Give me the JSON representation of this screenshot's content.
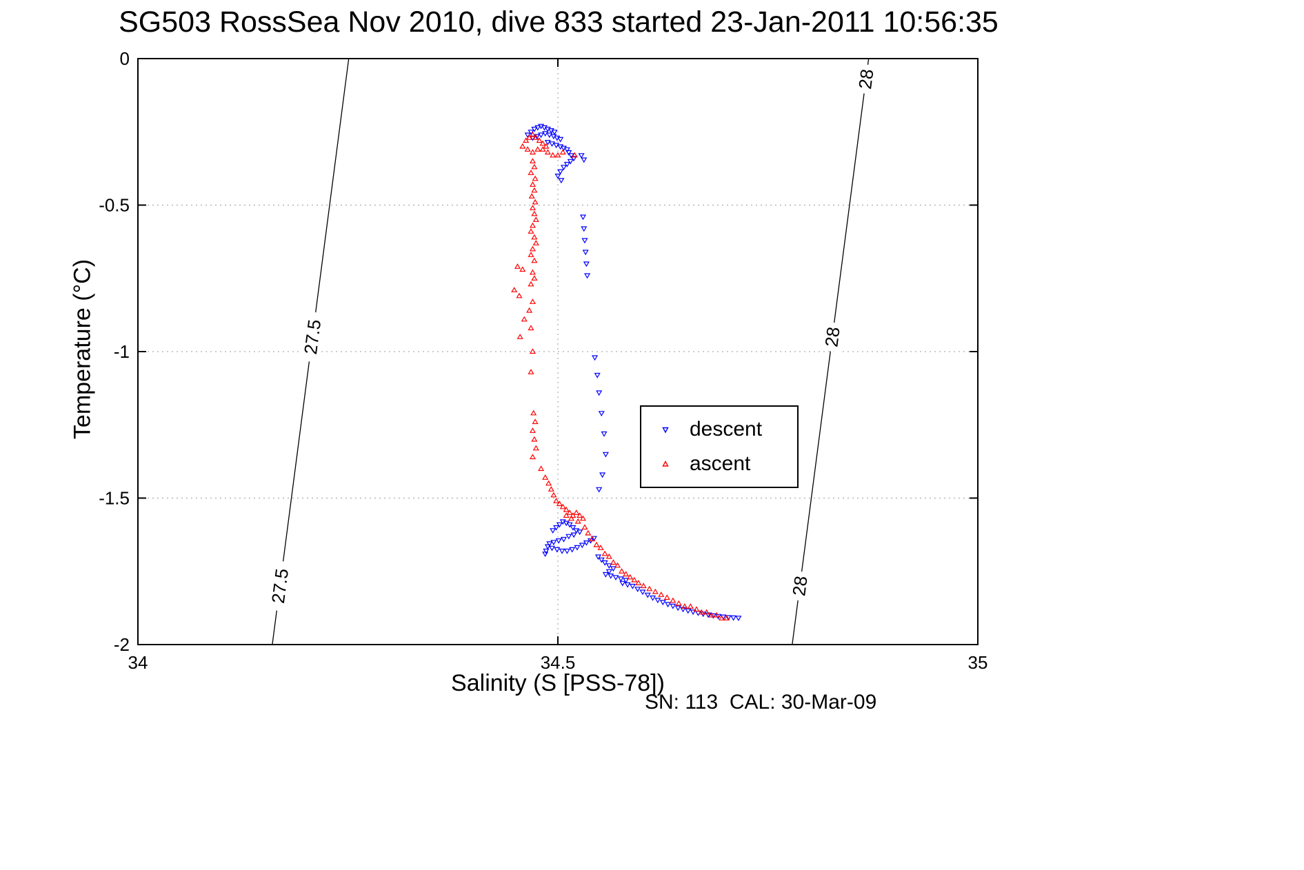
{
  "title": "SG503 RossSea Nov 2010, dive 833 started 23-Jan-2011 10:56:35",
  "footer_text": "SN: 113  CAL: 30-Mar-09",
  "chart_data": {
    "type": "scatter",
    "title": "SG503 RossSea Nov 2010, dive 833 started 23-Jan-2011 10:56:35",
    "xlabel": "Salinity (S [PSS-78])",
    "ylabel": "Temperature (°C)",
    "xlim": [
      34,
      35
    ],
    "ylim": [
      -2,
      0
    ],
    "grid": true,
    "x_axis": {
      "ticks": [
        {
          "v": 34,
          "label": "34"
        },
        {
          "v": 34.5,
          "label": "34.5"
        },
        {
          "v": 35,
          "label": "35"
        }
      ],
      "grid_at": [
        34.5
      ]
    },
    "y_axis": {
      "ticks": [
        {
          "v": 0,
          "label": "0"
        },
        {
          "v": -0.5,
          "label": "-0.5"
        },
        {
          "v": -1,
          "label": "-1"
        },
        {
          "v": -1.5,
          "label": "-1.5"
        },
        {
          "v": -2,
          "label": "-2"
        }
      ],
      "grid_at": [
        -0.5,
        -1,
        -1.5
      ]
    },
    "contours": [
      {
        "label": "27.5",
        "s_at_t0": 34.251,
        "s_at_tm2": 34.16,
        "label_t": [
          -0.95,
          -1.8
        ]
      },
      {
        "label": "28",
        "s_at_t0": 34.87,
        "s_at_tm2": 34.779,
        "label_t": [
          -0.07,
          -0.95,
          -1.8
        ]
      }
    ],
    "legend": {
      "position": "inside-right",
      "entries": [
        {
          "label": "descent",
          "color": "#0000ff",
          "marker": "v"
        },
        {
          "label": "ascent",
          "color": "#ff0000",
          "marker": "^"
        }
      ]
    },
    "series": [
      {
        "name": "descent",
        "color": "#0000ff",
        "marker": "v",
        "points": [
          [
            34.464,
            -0.26
          ],
          [
            34.468,
            -0.25
          ],
          [
            34.472,
            -0.24
          ],
          [
            34.476,
            -0.235
          ],
          [
            34.48,
            -0.23
          ],
          [
            34.484,
            -0.235
          ],
          [
            34.488,
            -0.24
          ],
          [
            34.492,
            -0.245
          ],
          [
            34.496,
            -0.25
          ],
          [
            34.47,
            -0.27
          ],
          [
            34.475,
            -0.265
          ],
          [
            34.48,
            -0.26
          ],
          [
            34.485,
            -0.255
          ],
          [
            34.49,
            -0.26
          ],
          [
            34.495,
            -0.265
          ],
          [
            34.499,
            -0.27
          ],
          [
            34.503,
            -0.275
          ],
          [
            34.488,
            -0.285
          ],
          [
            34.493,
            -0.29
          ],
          [
            34.498,
            -0.295
          ],
          [
            34.503,
            -0.3
          ],
          [
            34.507,
            -0.305
          ],
          [
            34.511,
            -0.31
          ],
          [
            34.513,
            -0.32
          ],
          [
            34.516,
            -0.33
          ],
          [
            34.519,
            -0.34
          ],
          [
            34.515,
            -0.35
          ],
          [
            34.511,
            -0.36
          ],
          [
            34.507,
            -0.37
          ],
          [
            34.503,
            -0.385
          ],
          [
            34.5,
            -0.4
          ],
          [
            34.504,
            -0.415
          ],
          [
            34.528,
            -0.33
          ],
          [
            34.531,
            -0.345
          ],
          [
            34.53,
            -0.54
          ],
          [
            34.531,
            -0.58
          ],
          [
            34.532,
            -0.62
          ],
          [
            34.533,
            -0.66
          ],
          [
            34.534,
            -0.7
          ],
          [
            34.535,
            -0.74
          ],
          [
            34.544,
            -1.02
          ],
          [
            34.547,
            -1.08
          ],
          [
            34.549,
            -1.14
          ],
          [
            34.552,
            -1.21
          ],
          [
            34.555,
            -1.28
          ],
          [
            34.557,
            -1.35
          ],
          [
            34.553,
            -1.42
          ],
          [
            34.549,
            -1.47
          ],
          [
            34.494,
            -1.61
          ],
          [
            34.498,
            -1.6
          ],
          [
            34.502,
            -1.59
          ],
          [
            34.506,
            -1.58
          ],
          [
            34.51,
            -1.585
          ],
          [
            34.514,
            -1.59
          ],
          [
            34.518,
            -1.6
          ],
          [
            34.522,
            -1.61
          ],
          [
            34.526,
            -1.615
          ],
          [
            34.519,
            -1.625
          ],
          [
            34.513,
            -1.63
          ],
          [
            34.507,
            -1.64
          ],
          [
            34.501,
            -1.645
          ],
          [
            34.495,
            -1.65
          ],
          [
            34.49,
            -1.655
          ],
          [
            34.488,
            -1.665
          ],
          [
            34.493,
            -1.67
          ],
          [
            34.499,
            -1.675
          ],
          [
            34.505,
            -1.68
          ],
          [
            34.511,
            -1.68
          ],
          [
            34.517,
            -1.675
          ],
          [
            34.523,
            -1.668
          ],
          [
            34.529,
            -1.66
          ],
          [
            34.534,
            -1.652
          ],
          [
            34.539,
            -1.645
          ],
          [
            34.543,
            -1.637
          ],
          [
            34.486,
            -1.68
          ],
          [
            34.485,
            -1.69
          ],
          [
            34.548,
            -1.7
          ],
          [
            34.552,
            -1.71
          ],
          [
            34.556,
            -1.72
          ],
          [
            34.561,
            -1.73
          ],
          [
            34.566,
            -1.74
          ],
          [
            34.561,
            -1.75
          ],
          [
            34.557,
            -1.76
          ],
          [
            34.563,
            -1.765
          ],
          [
            34.569,
            -1.77
          ],
          [
            34.575,
            -1.775
          ],
          [
            34.581,
            -1.78
          ],
          [
            34.577,
            -1.79
          ],
          [
            34.583,
            -1.795
          ],
          [
            34.589,
            -1.8
          ],
          [
            34.595,
            -1.81
          ],
          [
            34.601,
            -1.82
          ],
          [
            34.607,
            -1.83
          ],
          [
            34.613,
            -1.84
          ],
          [
            34.619,
            -1.848
          ],
          [
            34.625,
            -1.855
          ],
          [
            34.631,
            -1.862
          ],
          [
            34.637,
            -1.868
          ],
          [
            34.643,
            -1.874
          ],
          [
            34.649,
            -1.879
          ],
          [
            34.655,
            -1.884
          ],
          [
            34.661,
            -1.888
          ],
          [
            34.667,
            -1.892
          ],
          [
            34.673,
            -1.895
          ],
          [
            34.679,
            -1.898
          ],
          [
            34.685,
            -1.901
          ],
          [
            34.691,
            -1.903
          ],
          [
            34.697,
            -1.905
          ],
          [
            34.703,
            -1.907
          ],
          [
            34.709,
            -1.908
          ],
          [
            34.715,
            -1.909
          ]
        ]
      },
      {
        "name": "ascent",
        "color": "#ff0000",
        "marker": "^",
        "points": [
          [
            34.458,
            -0.3
          ],
          [
            34.462,
            -0.28
          ],
          [
            34.466,
            -0.27
          ],
          [
            34.47,
            -0.26
          ],
          [
            34.474,
            -0.27
          ],
          [
            34.478,
            -0.28
          ],
          [
            34.482,
            -0.29
          ],
          [
            34.486,
            -0.3
          ],
          [
            34.464,
            -0.31
          ],
          [
            34.47,
            -0.32
          ],
          [
            34.476,
            -0.31
          ],
          [
            34.482,
            -0.31
          ],
          [
            34.488,
            -0.32
          ],
          [
            34.494,
            -0.33
          ],
          [
            34.5,
            -0.33
          ],
          [
            34.506,
            -0.32
          ],
          [
            34.52,
            -0.33
          ],
          [
            34.47,
            -0.35
          ],
          [
            34.472,
            -0.37
          ],
          [
            34.468,
            -0.39
          ],
          [
            34.473,
            -0.41
          ],
          [
            34.47,
            -0.43
          ],
          [
            34.472,
            -0.45
          ],
          [
            34.469,
            -0.47
          ],
          [
            34.473,
            -0.49
          ],
          [
            34.47,
            -0.51
          ],
          [
            34.472,
            -0.53
          ],
          [
            34.474,
            -0.55
          ],
          [
            34.47,
            -0.57
          ],
          [
            34.468,
            -0.59
          ],
          [
            34.472,
            -0.61
          ],
          [
            34.474,
            -0.63
          ],
          [
            34.47,
            -0.65
          ],
          [
            34.468,
            -0.67
          ],
          [
            34.472,
            -0.69
          ],
          [
            34.452,
            -0.71
          ],
          [
            34.458,
            -0.72
          ],
          [
            34.47,
            -0.73
          ],
          [
            34.472,
            -0.75
          ],
          [
            34.468,
            -0.77
          ],
          [
            34.448,
            -0.79
          ],
          [
            34.454,
            -0.81
          ],
          [
            34.47,
            -0.83
          ],
          [
            34.466,
            -0.86
          ],
          [
            34.46,
            -0.89
          ],
          [
            34.468,
            -0.92
          ],
          [
            34.455,
            -0.95
          ],
          [
            34.47,
            -1.0
          ],
          [
            34.468,
            -1.07
          ],
          [
            34.471,
            -1.21
          ],
          [
            34.473,
            -1.24
          ],
          [
            34.47,
            -1.27
          ],
          [
            34.472,
            -1.3
          ],
          [
            34.474,
            -1.33
          ],
          [
            34.47,
            -1.36
          ],
          [
            34.48,
            -1.4
          ],
          [
            34.485,
            -1.43
          ],
          [
            34.489,
            -1.45
          ],
          [
            34.492,
            -1.47
          ],
          [
            34.495,
            -1.49
          ],
          [
            34.498,
            -1.51
          ],
          [
            34.502,
            -1.52
          ],
          [
            34.506,
            -1.53
          ],
          [
            34.51,
            -1.54
          ],
          [
            34.514,
            -1.55
          ],
          [
            34.518,
            -1.56
          ],
          [
            34.522,
            -1.55
          ],
          [
            34.526,
            -1.56
          ],
          [
            34.53,
            -1.57
          ],
          [
            34.524,
            -1.58
          ],
          [
            34.516,
            -1.57
          ],
          [
            34.51,
            -1.56
          ],
          [
            34.532,
            -1.6
          ],
          [
            34.536,
            -1.62
          ],
          [
            34.541,
            -1.64
          ],
          [
            34.546,
            -1.66
          ],
          [
            34.551,
            -1.67
          ],
          [
            34.556,
            -1.69
          ],
          [
            34.561,
            -1.7
          ],
          [
            34.566,
            -1.72
          ],
          [
            34.571,
            -1.73
          ],
          [
            34.576,
            -1.75
          ],
          [
            34.581,
            -1.76
          ],
          [
            34.586,
            -1.77
          ],
          [
            34.591,
            -1.78
          ],
          [
            34.596,
            -1.79
          ],
          [
            34.602,
            -1.8
          ],
          [
            34.609,
            -1.81
          ],
          [
            34.616,
            -1.82
          ],
          [
            34.623,
            -1.83
          ],
          [
            34.63,
            -1.84
          ],
          [
            34.637,
            -1.85
          ],
          [
            34.644,
            -1.86
          ],
          [
            34.651,
            -1.87
          ],
          [
            34.658,
            -1.87
          ],
          [
            34.665,
            -1.88
          ],
          [
            34.671,
            -1.89
          ],
          [
            34.677,
            -1.89
          ],
          [
            34.683,
            -1.9
          ],
          [
            34.689,
            -1.9
          ],
          [
            34.695,
            -1.91
          ],
          [
            34.701,
            -1.91
          ]
        ]
      }
    ]
  }
}
